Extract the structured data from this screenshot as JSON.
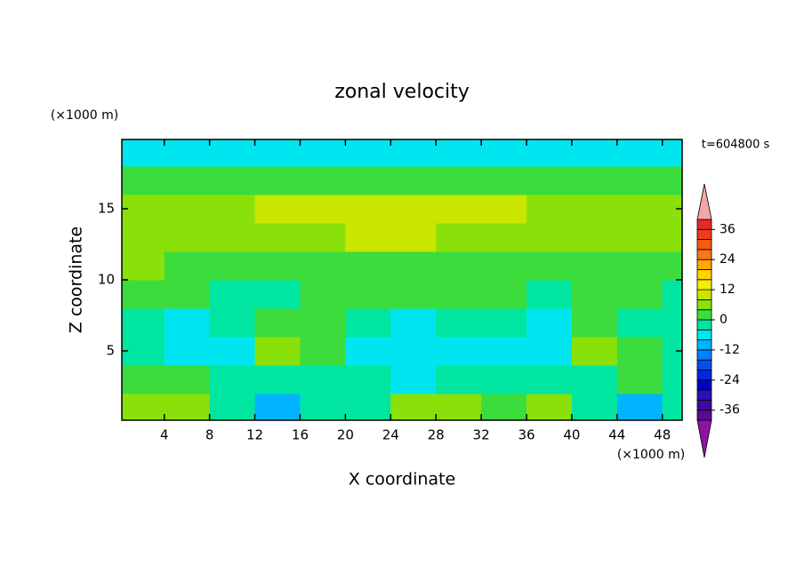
{
  "chart_data": {
    "type": "contour",
    "title": "zonal velocity",
    "x_label": "X coordinate",
    "y_label": "Z coordinate",
    "x_unit": "(×1000 m)",
    "y_unit": "(×1000 m)",
    "time_label": "t=604800 s",
    "x": [
      2,
      6,
      10,
      14,
      18,
      22,
      26,
      30,
      34,
      38,
      42,
      46,
      50
    ],
    "y": [
      1,
      3,
      5,
      7,
      9,
      11,
      13,
      15,
      17,
      19
    ],
    "z": [
      [
        4,
        5,
        -4,
        -10,
        -4,
        -3,
        6,
        5,
        3,
        7,
        -3,
        -10,
        -3
      ],
      [
        2,
        1,
        -2,
        -3,
        -2,
        -4,
        -5,
        -3,
        -3,
        -4,
        -3,
        1,
        -4
      ],
      [
        -4,
        -6,
        -5,
        4,
        2,
        -6,
        -7,
        -5,
        -5,
        -7,
        4,
        2,
        -3
      ],
      [
        -4,
        -5,
        -3,
        2,
        3,
        -4,
        -5,
        -4,
        -3,
        -5,
        3,
        -2,
        -3
      ],
      [
        2,
        1,
        -2,
        -1,
        1,
        2,
        2,
        1,
        1,
        -1,
        2,
        1,
        -2
      ],
      [
        5,
        3,
        2,
        2,
        2,
        3,
        3,
        2,
        2,
        2,
        2,
        2,
        3
      ],
      [
        6,
        6,
        6,
        7,
        7,
        8,
        8,
        7,
        7,
        6,
        6,
        6,
        6
      ],
      [
        6,
        6,
        6,
        8,
        9,
        10,
        10,
        10,
        9,
        7,
        6,
        6,
        6
      ],
      [
        1,
        1,
        1,
        1,
        1,
        1,
        1,
        1,
        1,
        1,
        1,
        1,
        1
      ],
      [
        -6,
        -6,
        -6,
        -6,
        -7,
        -6,
        -6,
        -6,
        -6,
        -6,
        -6,
        -6,
        -6
      ]
    ],
    "xlim": [
      0.25,
      49.75
    ],
    "ylim": [
      0.125,
      19.875
    ],
    "xticks": [
      4,
      8,
      12,
      16,
      20,
      24,
      28,
      32,
      36,
      40,
      44,
      48
    ],
    "yticks": [
      5,
      10,
      15
    ],
    "levels": [
      -40,
      -36,
      -32,
      -28,
      -24,
      -20,
      -16,
      -12,
      -8,
      -4,
      0,
      4,
      8,
      12,
      16,
      20,
      24,
      28,
      32,
      36,
      40
    ],
    "colors": [
      "#8c14a0",
      "#5a0a96",
      "#3c0aa0",
      "#2814b4",
      "#0000c8",
      "#0028dc",
      "#0050f0",
      "#0082ff",
      "#00b4ff",
      "#00e6f0",
      "#00e6a0",
      "#3cdc3c",
      "#8ae10a",
      "#c8e600",
      "#f0f000",
      "#ffd200",
      "#ffaa00",
      "#fa7814",
      "#f55a0f",
      "#f03c1e",
      "#e62828",
      "#f4a6a6"
    ],
    "colorbar_ticks": [
      -36,
      -24,
      -12,
      0,
      12,
      24,
      36
    ]
  }
}
